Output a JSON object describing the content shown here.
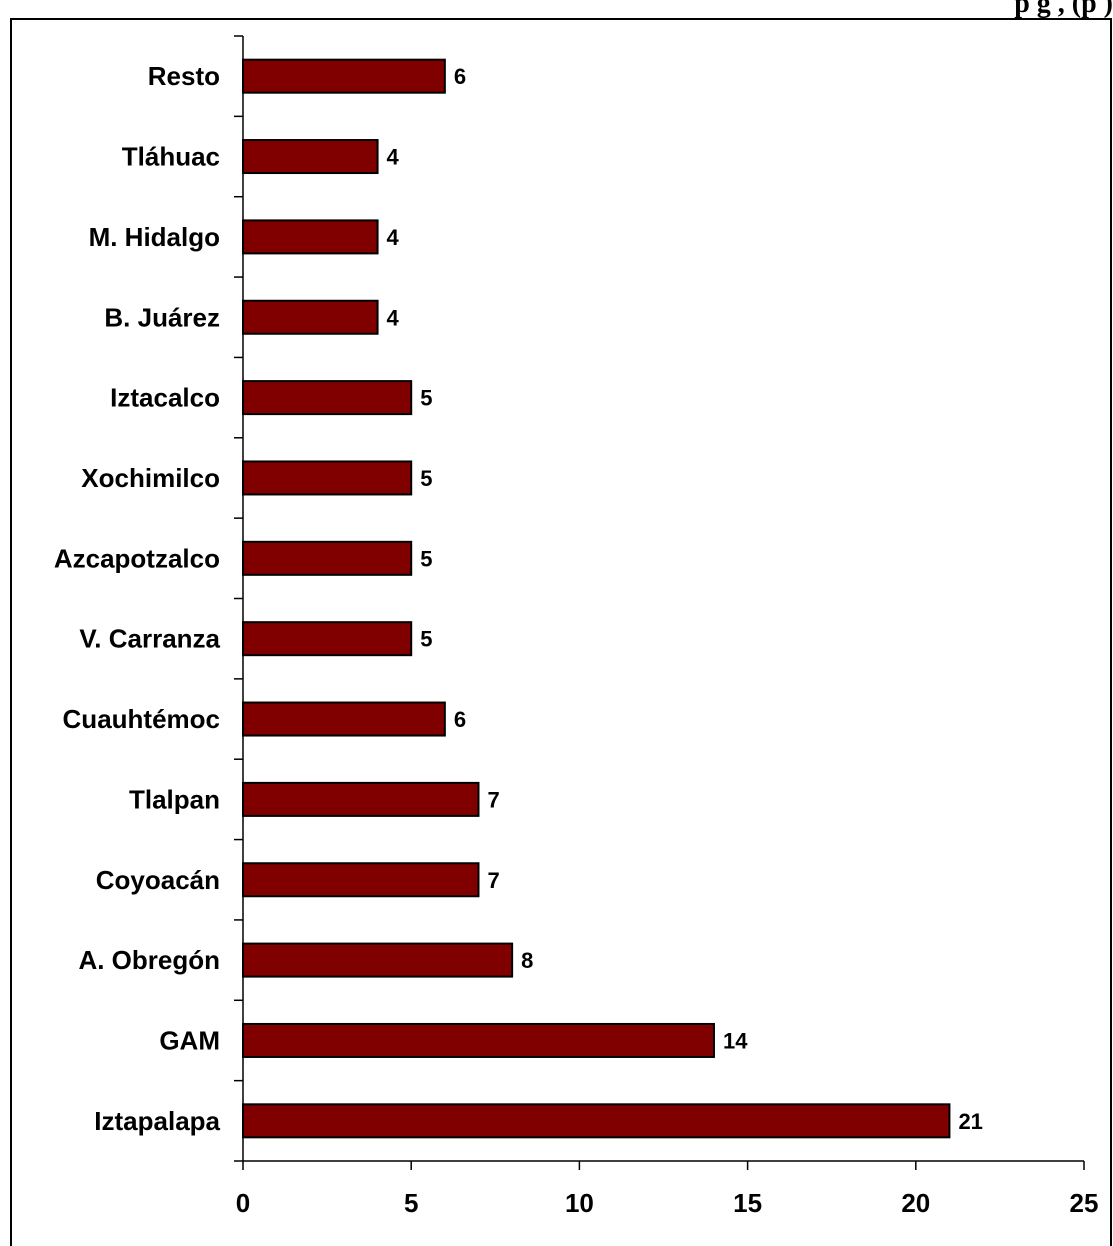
{
  "chart_data": {
    "type": "bar",
    "orientation": "horizontal",
    "title": "p  g    ,     (p         )",
    "categories": [
      "Resto",
      "Tláhuac",
      "M. Hidalgo",
      "B. Juárez",
      "Iztacalco",
      "Xochimilco",
      "Azcapotzalco",
      "V. Carranza",
      "Cuauhtémoc",
      "Tlalpan",
      "Coyoacán",
      "A. Obregón",
      "GAM",
      "Iztapalapa"
    ],
    "values": [
      6,
      4,
      4,
      4,
      5,
      5,
      5,
      5,
      6,
      7,
      7,
      8,
      14,
      21
    ],
    "data_labels": [
      "6",
      "4",
      "4",
      "4",
      "5",
      "5",
      "5",
      "5",
      "6",
      "7",
      "7",
      "8",
      "14",
      "21"
    ],
    "xlim": [
      0,
      25
    ],
    "x_ticks": [
      0,
      5,
      10,
      15,
      20,
      25
    ],
    "x_tick_labels": [
      "0",
      "5",
      "10",
      "15",
      "20",
      "25"
    ],
    "grid": false,
    "legend": "none",
    "bar_color": "#800000",
    "bar_edge_color": "#000000"
  }
}
